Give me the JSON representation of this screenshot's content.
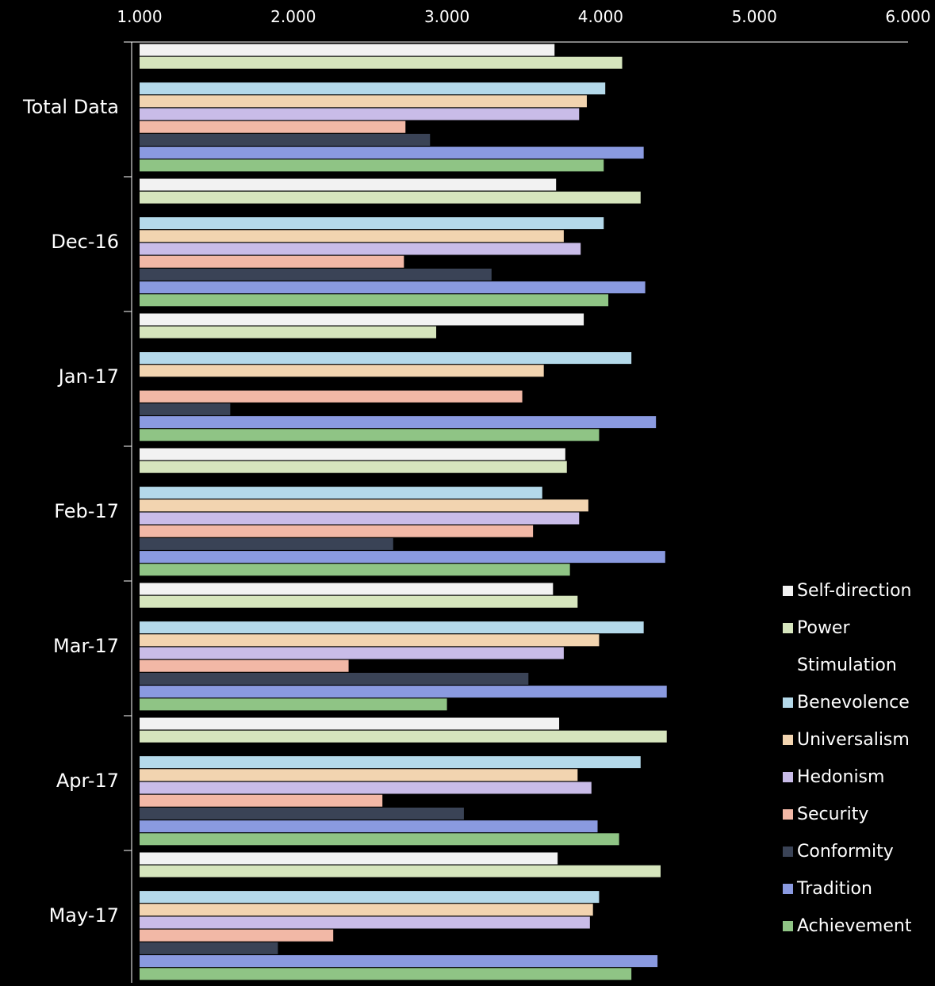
{
  "chart_data": {
    "type": "bar",
    "orientation": "horizontal",
    "title": "",
    "xlabel": "",
    "ylabel": "",
    "xlim": [
      1.0,
      6.0
    ],
    "x_ticks": [
      "1.000",
      "2.000",
      "3.000",
      "4.000",
      "5.000",
      "6.000"
    ],
    "x_tick_values": [
      1,
      2,
      3,
      4,
      5,
      6
    ],
    "x_axis_position": "top",
    "grid": false,
    "legend_position": "right",
    "categories": [
      "Total Data",
      "Dec-16",
      "Jan-17",
      "Feb-17",
      "Mar-17",
      "Apr-17",
      "May-17"
    ],
    "series": [
      {
        "name": "Self-direction",
        "color": "#f2f2f2",
        "values": [
          3.7,
          3.71,
          3.89,
          3.77,
          3.69,
          3.73,
          3.72
        ]
      },
      {
        "name": "Power",
        "color": "#d6e5bd",
        "values": [
          4.14,
          4.26,
          2.93,
          3.78,
          3.85,
          4.43,
          4.39
        ]
      },
      {
        "name": "Stimulation",
        "color": "#000000",
        "values": [
          1.0,
          1.0,
          1.0,
          1.0,
          1.0,
          1.0,
          1.0
        ]
      },
      {
        "name": "Benevolence",
        "color": "#b4d9ea",
        "values": [
          4.03,
          4.02,
          4.2,
          3.62,
          4.28,
          4.26,
          3.99
        ]
      },
      {
        "name": "Universalism",
        "color": "#f2d4b0",
        "values": [
          3.91,
          3.76,
          3.63,
          3.92,
          3.99,
          3.85,
          3.95
        ]
      },
      {
        "name": "Hedonism",
        "color": "#c9bce8",
        "values": [
          3.86,
          3.87,
          1.0,
          3.86,
          3.76,
          3.94,
          3.93
        ]
      },
      {
        "name": "Security",
        "color": "#f2b8a6",
        "values": [
          2.73,
          2.72,
          3.49,
          3.56,
          2.36,
          2.58,
          2.26
        ]
      },
      {
        "name": "Conformity",
        "color": "#3a4356",
        "values": [
          2.89,
          3.29,
          1.59,
          2.65,
          3.53,
          3.11,
          1.9
        ]
      },
      {
        "name": "Tradition",
        "color": "#8a9ae0",
        "values": [
          4.28,
          4.29,
          4.36,
          4.42,
          4.43,
          3.98,
          4.37
        ]
      },
      {
        "name": "Achievement",
        "color": "#8fc485",
        "values": [
          4.02,
          4.05,
          3.99,
          3.8,
          3.0,
          4.12,
          4.2
        ]
      }
    ]
  }
}
